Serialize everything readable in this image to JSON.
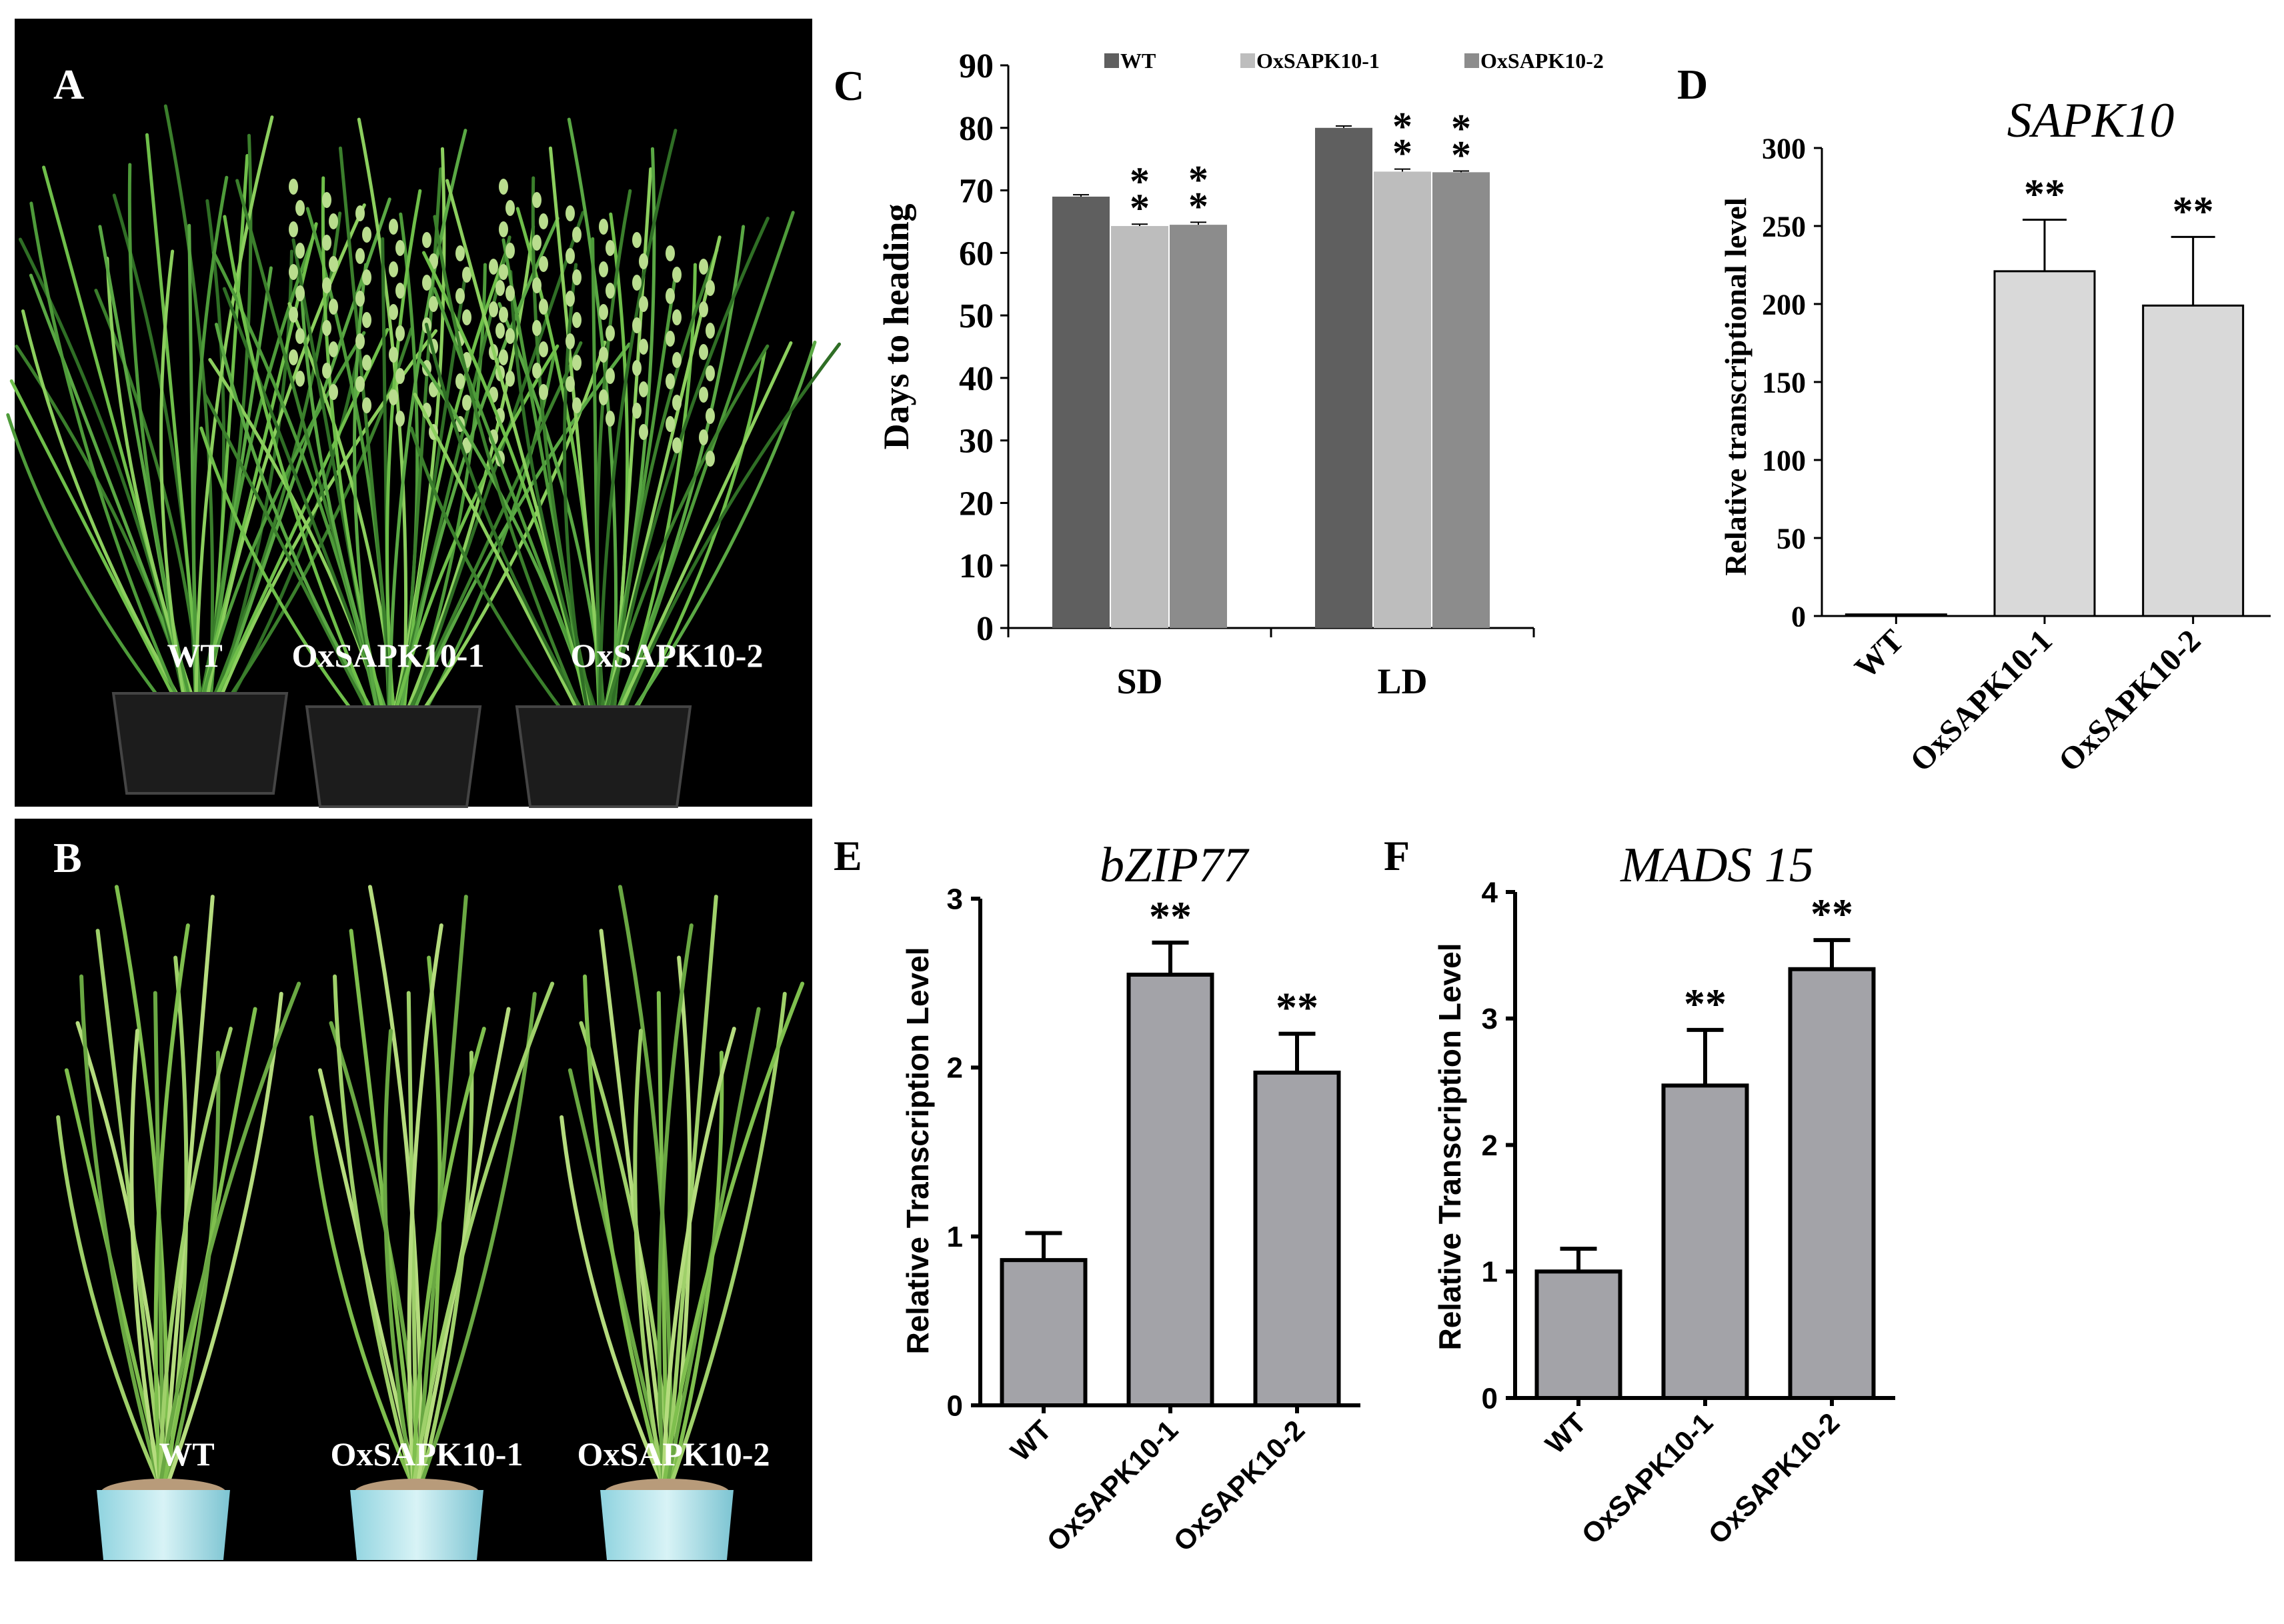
{
  "panel_letters": {
    "a": "A",
    "b": "B",
    "c": "C",
    "d": "D",
    "e": "E",
    "f": "F"
  },
  "photos": {
    "a": {
      "labels": [
        "WT",
        "OxSAPK10-1",
        "OxSAPK10-2"
      ]
    },
    "b": {
      "labels": [
        "WT",
        "OxSAPK10-1",
        "OxSAPK10-2"
      ]
    }
  },
  "chart_data": [
    {
      "panel": "C",
      "type": "bar",
      "title": "",
      "ylabel": "Days to heading",
      "xlabel": "",
      "categories": [
        "SD",
        "LD"
      ],
      "ylim": [
        0,
        90
      ],
      "yticks": [
        0,
        10,
        20,
        30,
        40,
        50,
        60,
        70,
        80,
        90
      ],
      "legend_position": "top",
      "series": [
        {
          "name": "WT",
          "values": [
            69,
            80
          ],
          "errors": [
            0.3,
            0.3
          ],
          "color": "#5f5f5f",
          "sig": [
            "",
            ""
          ]
        },
        {
          "name": "OxSAPK10-1",
          "values": [
            64.3,
            73
          ],
          "errors": [
            0.3,
            0.4
          ],
          "color": "#bdbdbd",
          "sig": [
            "**",
            "**"
          ]
        },
        {
          "name": "OxSAPK10-2",
          "values": [
            64.5,
            72.9
          ],
          "errors": [
            0.4,
            0.2
          ],
          "color": "#8c8c8c",
          "sig": [
            "**",
            "**"
          ]
        }
      ]
    },
    {
      "panel": "D",
      "type": "bar",
      "title": "SAPK10",
      "ylabel": "Relative transcriptional level",
      "categories": [
        "WT",
        "OxSAPK10-1",
        "OxSAPK10-2"
      ],
      "values": [
        1,
        221,
        199
      ],
      "errors": [
        0,
        33,
        44
      ],
      "sig": [
        "",
        "**",
        "**"
      ],
      "ylim": [
        0,
        300
      ],
      "yticks": [
        0,
        50,
        100,
        150,
        200,
        250,
        300
      ],
      "bar_color": "#d9d9d9"
    },
    {
      "panel": "E",
      "type": "bar",
      "title": "bZIP77",
      "ylabel": "Relative Transcription Level",
      "categories": [
        "WT",
        "OxSAPK10-1",
        "OxSAPK10-2"
      ],
      "values": [
        0.86,
        2.55,
        1.97
      ],
      "errors": [
        0.16,
        0.19,
        0.23
      ],
      "sig": [
        "",
        "**",
        "**"
      ],
      "ylim": [
        0,
        3
      ],
      "yticks": [
        0,
        1,
        2,
        3
      ],
      "bar_color": "#a3a3a8"
    },
    {
      "panel": "F",
      "type": "bar",
      "title": "MADS 15",
      "ylabel": "Relative Transcription Level",
      "categories": [
        "WT",
        "OxSAPK10-1",
        "OxSAPK10-2"
      ],
      "values": [
        1.0,
        2.47,
        3.39
      ],
      "errors": [
        0.18,
        0.44,
        0.23
      ],
      "sig": [
        "",
        "**",
        "**"
      ],
      "ylim": [
        0,
        4
      ],
      "yticks": [
        0,
        1,
        2,
        3,
        4
      ],
      "bar_color": "#a3a3a8"
    }
  ]
}
